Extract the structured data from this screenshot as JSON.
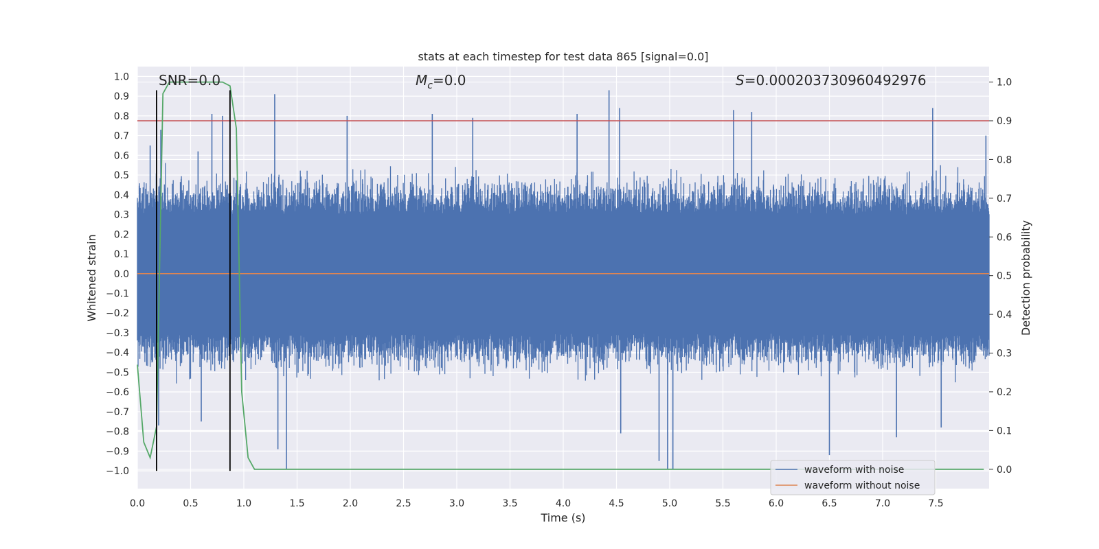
{
  "chart_data": {
    "type": "line",
    "title": "stats at each timestep for test data 865 [signal=0.0]",
    "xlabel": "Time (s)",
    "ylabel": "Whitened strain",
    "y2label": "Detection probability",
    "xlim": [
      0.0,
      8.0
    ],
    "ylim": [
      -1.09,
      1.05
    ],
    "y2lim": [
      -0.05,
      1.04
    ],
    "x_ticks": [
      "0.0",
      "0.5",
      "1.0",
      "1.5",
      "2.0",
      "2.5",
      "3.0",
      "3.5",
      "4.0",
      "4.5",
      "5.0",
      "5.5",
      "6.0",
      "6.5",
      "7.0",
      "7.5"
    ],
    "y_ticks": [
      "1.0",
      "0.9",
      "0.8",
      "0.7",
      "0.6",
      "0.5",
      "0.4",
      "0.3",
      "0.2",
      "0.1",
      "0.0",
      "−0.1",
      "−0.2",
      "−0.3",
      "−0.4",
      "−0.5",
      "−0.6",
      "−0.7",
      "−0.8",
      "−0.9",
      "−1.0"
    ],
    "y2_ticks": [
      "1.0",
      "0.9",
      "0.8",
      "0.7",
      "0.6",
      "0.5",
      "0.4",
      "0.3",
      "0.2",
      "0.1",
      "0.0"
    ],
    "grid": true,
    "legend_position": "lower-right",
    "annotations": {
      "snr": "SNR=0.0",
      "mc_symbol": "M",
      "mc_sub": "c",
      "mc_value": "=0.0",
      "s_symbol": "S",
      "s_value": "=0.000203730960492976"
    },
    "series": [
      {
        "name": "waveform with noise",
        "axis": "left",
        "color": "#4c72b0",
        "envelope_peaks": [
          {
            "x": 0.12,
            "y": 0.65
          },
          {
            "x": 0.22,
            "y": 0.73
          },
          {
            "x": 0.57,
            "y": 0.62
          },
          {
            "x": 0.7,
            "y": 0.81
          },
          {
            "x": 0.8,
            "y": 0.8
          },
          {
            "x": 1.29,
            "y": 0.91
          },
          {
            "x": 1.97,
            "y": 0.8
          },
          {
            "x": 2.77,
            "y": 0.81
          },
          {
            "x": 3.15,
            "y": 0.79
          },
          {
            "x": 4.13,
            "y": 0.81
          },
          {
            "x": 4.43,
            "y": 0.93
          },
          {
            "x": 4.53,
            "y": 0.84
          },
          {
            "x": 5.6,
            "y": 0.83
          },
          {
            "x": 5.77,
            "y": 0.82
          },
          {
            "x": 7.47,
            "y": 0.84
          },
          {
            "x": 7.97,
            "y": 0.7
          }
        ],
        "envelope_troughs": [
          {
            "x": 0.2,
            "y": -0.77
          },
          {
            "x": 0.6,
            "y": -0.75
          },
          {
            "x": 1.4,
            "y": -0.99
          },
          {
            "x": 1.32,
            "y": -0.89
          },
          {
            "x": 4.54,
            "y": -0.81
          },
          {
            "x": 4.9,
            "y": -0.95
          },
          {
            "x": 4.98,
            "y": -0.99
          },
          {
            "x": 5.03,
            "y": -0.99
          },
          {
            "x": 6.5,
            "y": -0.92
          },
          {
            "x": 7.13,
            "y": -0.83
          },
          {
            "x": 7.55,
            "y": -0.78
          }
        ]
      },
      {
        "name": "waveform without noise",
        "axis": "left",
        "color": "#dd8452",
        "x": [
          0.0,
          8.0
        ],
        "y": [
          0.0,
          0.0
        ]
      },
      {
        "axis": "right",
        "color": "#55a868",
        "x": [
          0.0,
          0.06,
          0.12,
          0.18,
          0.24,
          0.3,
          0.36,
          0.42,
          0.5,
          0.6,
          0.7,
          0.8,
          0.87,
          0.93,
          0.98,
          1.04,
          1.1,
          1.16,
          1.5,
          2.0,
          3.0,
          4.0,
          5.0,
          6.0,
          7.0,
          7.95
        ],
        "y": [
          0.27,
          0.07,
          0.03,
          0.11,
          0.97,
          1.0,
          1.0,
          1.0,
          1.0,
          1.0,
          1.0,
          1.0,
          0.99,
          0.88,
          0.2,
          0.03,
          0.0,
          0.0,
          0.0,
          0.0,
          0.0,
          0.0,
          0.0,
          0.0,
          0.0,
          0.0
        ]
      }
    ],
    "threshold": {
      "axis": "right",
      "value": 0.9,
      "color": "#c44e52"
    },
    "markers": {
      "color": "#000000",
      "x": [
        0.18,
        0.87
      ],
      "y_range": [
        -1.0,
        0.93
      ]
    }
  }
}
